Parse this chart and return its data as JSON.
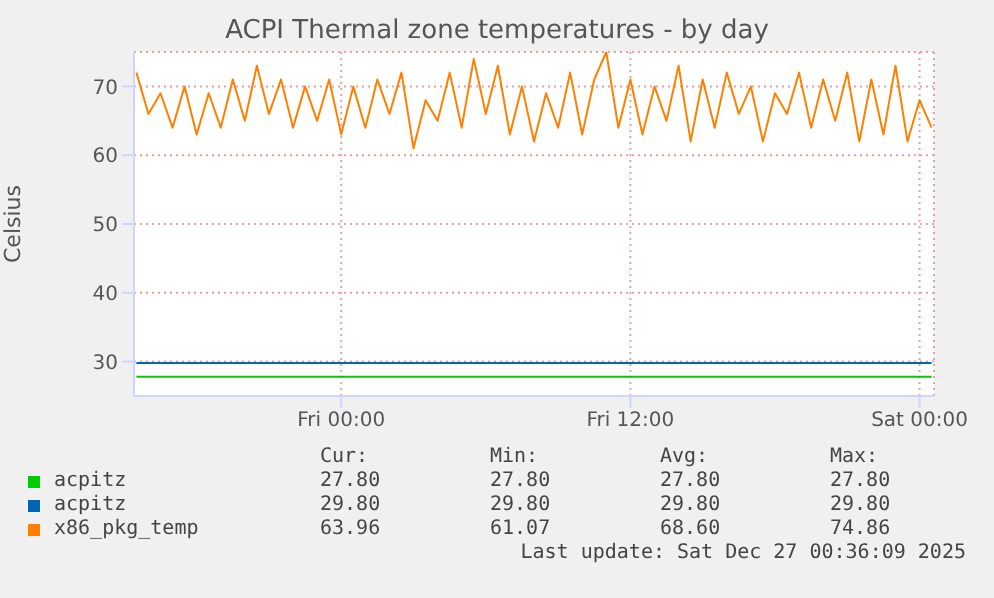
{
  "chart_data": {
    "type": "line",
    "title": "ACPI Thermal zone temperatures - by day",
    "ylabel": "Celsius",
    "xlim": [
      "2025-12-25T15:24",
      "2025-12-27T00:36"
    ],
    "xticks": [
      {
        "value": "2025-12-26T00:00",
        "label": "Fri 00:00"
      },
      {
        "value": "2025-12-26T12:00",
        "label": "Fri 12:00"
      },
      {
        "value": "2025-12-27T00:00",
        "label": "Sat 00:00"
      }
    ],
    "ylim": [
      25,
      75
    ],
    "yticks": [
      30,
      40,
      50,
      60,
      70
    ],
    "grid": true,
    "legend": "bottom",
    "series": [
      {
        "name": "acpitz",
        "color": "#00cc00",
        "x": [
          "2025-12-25T15:30",
          "2025-12-27T00:30"
        ],
        "values": [
          27.8,
          27.8
        ]
      },
      {
        "name": "acpitz",
        "color": "#0066b3",
        "x": [
          "2025-12-25T15:30",
          "2025-12-27T00:30"
        ],
        "values": [
          29.8,
          29.8
        ]
      },
      {
        "name": "x86_pkg_temp",
        "color": "#ff8000",
        "x": [
          "2025-12-25T15:30",
          "2025-12-25T16:00",
          "2025-12-25T16:30",
          "2025-12-25T17:00",
          "2025-12-25T17:30",
          "2025-12-25T18:00",
          "2025-12-25T18:30",
          "2025-12-25T19:00",
          "2025-12-25T19:30",
          "2025-12-25T20:00",
          "2025-12-25T20:30",
          "2025-12-25T21:00",
          "2025-12-25T21:30",
          "2025-12-25T22:00",
          "2025-12-25T22:30",
          "2025-12-25T23:00",
          "2025-12-25T23:30",
          "2025-12-26T00:00",
          "2025-12-26T00:30",
          "2025-12-26T01:00",
          "2025-12-26T01:30",
          "2025-12-26T02:00",
          "2025-12-26T02:30",
          "2025-12-26T03:00",
          "2025-12-26T03:30",
          "2025-12-26T04:00",
          "2025-12-26T04:30",
          "2025-12-26T05:00",
          "2025-12-26T05:30",
          "2025-12-26T06:00",
          "2025-12-26T06:30",
          "2025-12-26T07:00",
          "2025-12-26T07:30",
          "2025-12-26T08:00",
          "2025-12-26T08:30",
          "2025-12-26T09:00",
          "2025-12-26T09:30",
          "2025-12-26T10:00",
          "2025-12-26T10:30",
          "2025-12-26T11:00",
          "2025-12-26T11:30",
          "2025-12-26T12:00",
          "2025-12-26T12:30",
          "2025-12-26T13:00",
          "2025-12-26T13:30",
          "2025-12-26T14:00",
          "2025-12-26T14:30",
          "2025-12-26T15:00",
          "2025-12-26T15:30",
          "2025-12-26T16:00",
          "2025-12-26T16:30",
          "2025-12-26T17:00",
          "2025-12-26T17:30",
          "2025-12-26T18:00",
          "2025-12-26T18:30",
          "2025-12-26T19:00",
          "2025-12-26T19:30",
          "2025-12-26T20:00",
          "2025-12-26T20:30",
          "2025-12-26T21:00",
          "2025-12-26T21:30",
          "2025-12-26T22:00",
          "2025-12-26T22:30",
          "2025-12-26T23:00",
          "2025-12-26T23:30",
          "2025-12-27T00:00",
          "2025-12-27T00:30"
        ],
        "values": [
          72,
          66,
          69,
          64,
          70,
          63,
          69,
          64,
          71,
          65,
          73,
          66,
          71,
          64,
          70,
          65,
          71,
          63,
          70,
          64,
          71,
          66,
          72,
          61,
          68,
          65,
          72,
          64,
          74,
          66,
          73,
          63,
          70,
          62,
          69,
          64,
          72,
          63,
          71,
          75,
          64,
          71,
          63,
          70,
          65,
          73,
          62,
          71,
          64,
          72,
          66,
          70,
          62,
          69,
          66,
          72,
          64,
          71,
          65,
          72,
          62,
          71,
          63,
          73,
          62,
          68,
          64
        ]
      }
    ],
    "annotations": [
      "Cur:",
      "Min:",
      "Avg:",
      "Max:",
      "27.80",
      "27.80",
      "27.80",
      "27.80",
      "29.80",
      "29.80",
      "29.80",
      "29.80",
      "63.96",
      "61.07",
      "68.60",
      "74.86",
      "Last update: Sat Dec 27 00:36:09 2025"
    ]
  }
}
